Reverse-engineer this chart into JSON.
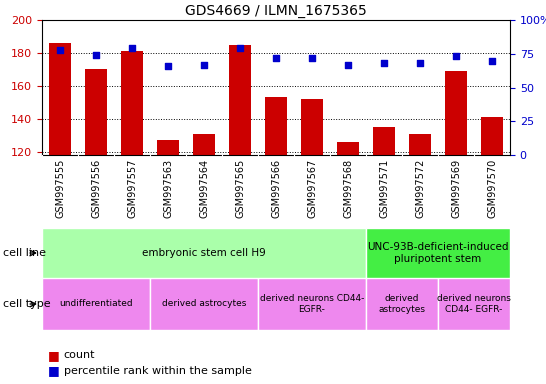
{
  "title": "GDS4669 / ILMN_1675365",
  "samples": [
    "GSM997555",
    "GSM997556",
    "GSM997557",
    "GSM997563",
    "GSM997564",
    "GSM997565",
    "GSM997566",
    "GSM997567",
    "GSM997568",
    "GSM997571",
    "GSM997572",
    "GSM997569",
    "GSM997570"
  ],
  "counts": [
    186,
    170,
    181,
    127,
    131,
    185,
    153,
    152,
    126,
    135,
    131,
    169,
    141
  ],
  "percentiles": [
    78,
    74,
    79,
    66,
    67,
    79,
    72,
    72,
    67,
    68,
    68,
    73,
    70
  ],
  "ylim_left": [
    118,
    200
  ],
  "ylim_right": [
    0,
    100
  ],
  "yticks_left": [
    120,
    140,
    160,
    180,
    200
  ],
  "yticks_right": [
    0,
    25,
    50,
    75,
    100
  ],
  "bar_color": "#cc0000",
  "dot_color": "#0000cc",
  "cell_line_groups": [
    {
      "label": "embryonic stem cell H9",
      "start": 0,
      "end": 9,
      "color": "#aaffaa"
    },
    {
      "label": "UNC-93B-deficient-induced\npluripotent stem",
      "start": 9,
      "end": 13,
      "color": "#44ee44"
    }
  ],
  "cell_type_groups": [
    {
      "label": "undifferentiated",
      "start": 0,
      "end": 3,
      "color": "#ee88ee"
    },
    {
      "label": "derived astrocytes",
      "start": 3,
      "end": 6,
      "color": "#ee88ee"
    },
    {
      "label": "derived neurons CD44-\nEGFR-",
      "start": 6,
      "end": 9,
      "color": "#ee88ee"
    },
    {
      "label": "derived\nastrocytes",
      "start": 9,
      "end": 11,
      "color": "#ee88ee"
    },
    {
      "label": "derived neurons\nCD44- EGFR-",
      "start": 11,
      "end": 13,
      "color": "#ee88ee"
    }
  ],
  "legend_count_label": "count",
  "legend_pct_label": "percentile rank within the sample",
  "cell_line_label": "cell line",
  "cell_type_label": "cell type",
  "background_color": "#ffffff",
  "tick_area_color": "#c8c8c8",
  "n_samples": 13
}
